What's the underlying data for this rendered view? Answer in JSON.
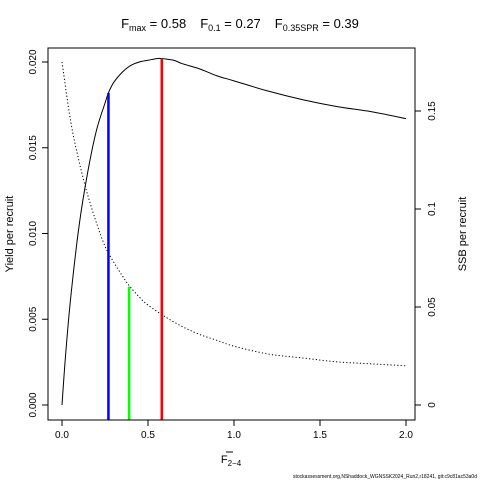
{
  "title": {
    "fmax_label": "F",
    "fmax_sub": "max",
    "fmax_value": " = 0.58",
    "f01_label": "F",
    "f01_sub": "0.1",
    "f01_value": " = 0.27",
    "fspr_label": "F",
    "fspr_sub": "0.35SPR",
    "fspr_value": " = 0.39"
  },
  "footer": "stockassessment.org,NShaddock_WGNSSK2024_Run2,r18241, git:c9c81ac53a0d",
  "chart_data": {
    "type": "line",
    "xlabel": "F",
    "xlabel_sub": "2−4",
    "ylabel_left": "Yield per recruit",
    "ylabel_right": "SSB per recruit",
    "xlim": [
      0,
      2
    ],
    "ylim_left": [
      0,
      0.02
    ],
    "ylim_right": [
      0,
      0.175
    ],
    "x_ticks": [
      "0.0",
      "0.5",
      "1.0",
      "1.5",
      "2.0"
    ],
    "y_left_ticks": [
      "0.000",
      "0.005",
      "0.010",
      "0.015",
      "0.020"
    ],
    "y_right_ticks": [
      "0",
      "0.05",
      "0.1",
      "0.15"
    ],
    "series": [
      {
        "axis": "left",
        "line_style": "solid",
        "color": "#000000",
        "x": [
          0,
          0.02,
          0.05,
          0.1,
          0.15,
          0.2,
          0.25,
          0.27,
          0.3,
          0.35,
          0.4,
          0.45,
          0.5,
          0.55,
          0.58,
          0.65,
          0.7,
          0.8,
          0.9,
          1.0,
          1.2,
          1.4,
          1.6,
          1.8,
          2.0
        ],
        "values": [
          0,
          0.0028,
          0.0062,
          0.0105,
          0.0136,
          0.016,
          0.0176,
          0.0182,
          0.0188,
          0.0194,
          0.0198,
          0.02,
          0.0201,
          0.0202,
          0.0202,
          0.0201,
          0.0199,
          0.0196,
          0.0192,
          0.0189,
          0.0183,
          0.0178,
          0.0174,
          0.0171,
          0.0167
        ]
      },
      {
        "axis": "right",
        "line_style": "dotted",
        "color": "#000000",
        "x": [
          0,
          0.05,
          0.1,
          0.15,
          0.2,
          0.25,
          0.3,
          0.35,
          0.39,
          0.45,
          0.5,
          0.6,
          0.7,
          0.8,
          0.9,
          1.0,
          1.2,
          1.4,
          1.6,
          1.8,
          2.0
        ],
        "values": [
          0.175,
          0.145,
          0.124,
          0.107,
          0.093,
          0.081,
          0.073,
          0.066,
          0.061,
          0.055,
          0.051,
          0.045,
          0.04,
          0.036,
          0.033,
          0.03,
          0.026,
          0.024,
          0.022,
          0.021,
          0.02
        ]
      }
    ],
    "reference_lines": [
      {
        "name": "F0.1",
        "x": 0.27,
        "y_top": 0.0182,
        "color": "#0000ff"
      },
      {
        "name": "F0.35SPR",
        "x": 0.39,
        "y_top": 0.0069,
        "color": "#00ff00"
      },
      {
        "name": "Fmax",
        "x": 0.58,
        "y_top": 0.0202,
        "color": "#ff0000"
      }
    ]
  }
}
